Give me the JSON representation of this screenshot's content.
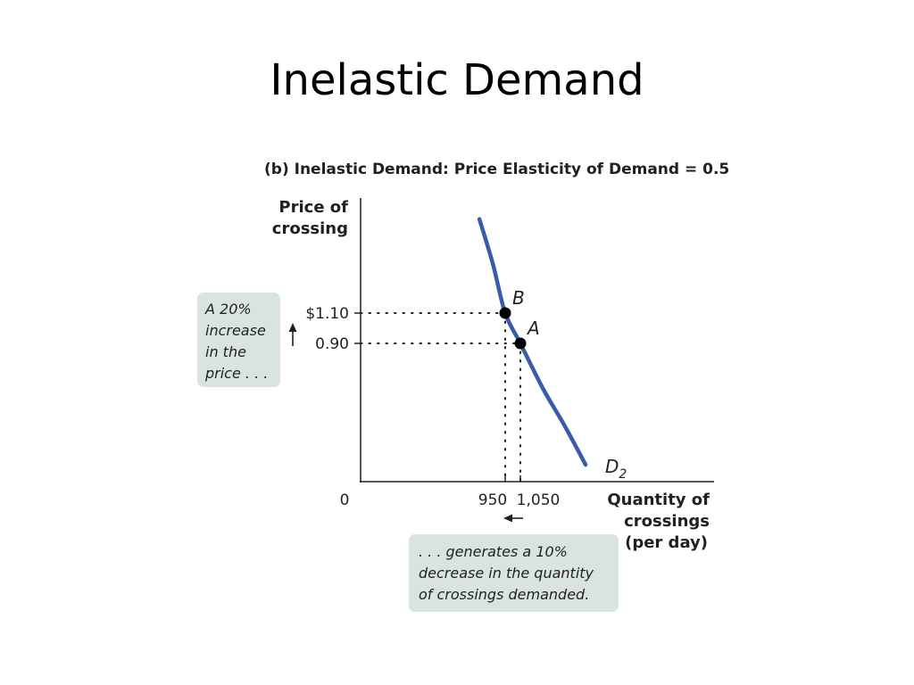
{
  "slide": {
    "title": "Inelastic Demand"
  },
  "chart_data": {
    "type": "line",
    "title": "(b) Inelastic Demand: Price Elasticity of Demand = 0.5",
    "ylabel": [
      "Price of",
      "crossing"
    ],
    "xlabel": [
      "Quantity of",
      "crossings",
      "(per day)"
    ],
    "origin_label": "0",
    "x_ticks": [
      {
        "value": 950,
        "label": "950"
      },
      {
        "value": 1050,
        "label": "1,050"
      }
    ],
    "y_ticks": [
      {
        "value": 1.1,
        "label": "$1.10"
      },
      {
        "value": 0.9,
        "label": "0.90"
      }
    ],
    "points": [
      {
        "name": "B",
        "x": 950,
        "y": 1.1
      },
      {
        "name": "A",
        "x": 1050,
        "y": 0.9
      }
    ],
    "series": [
      {
        "name": "D",
        "subscript": "2",
        "color": "#3a5ca8",
        "x": [
          780,
          870,
          950,
          1050,
          1200,
          1340,
          1480
        ],
        "y": [
          1.72,
          1.42,
          1.1,
          0.9,
          0.6,
          0.36,
          0.1
        ]
      }
    ],
    "annotations": {
      "price_note": [
        "A 20%",
        "increase",
        "in the",
        "price . . ."
      ],
      "quantity_note": [
        ". . . generates a 10%",
        "decrease in the quantity",
        "of crossings demanded."
      ]
    },
    "colors": {
      "curve": "#3a5ca8",
      "callout": "#d9e4e0",
      "text": "#231f20"
    }
  }
}
